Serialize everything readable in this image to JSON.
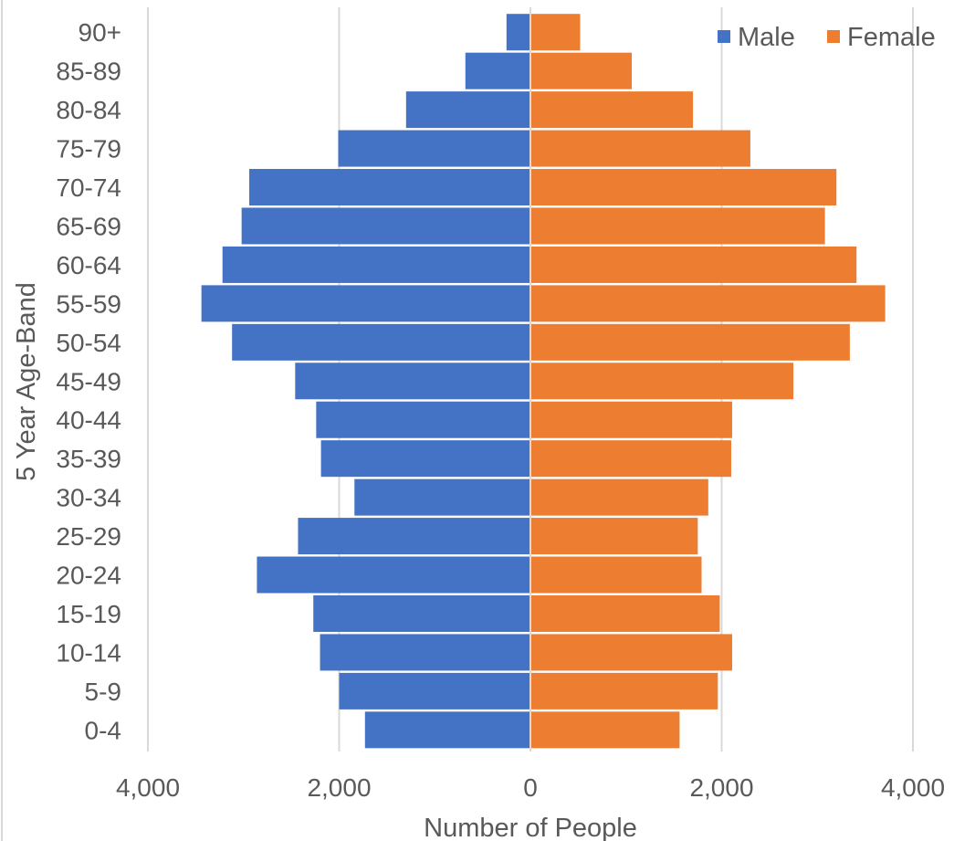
{
  "chart_data": {
    "type": "bar",
    "orientation": "horizontal",
    "style": "population-pyramid",
    "categories": [
      "0-4",
      "5-9",
      "10-14",
      "15-19",
      "20-24",
      "25-29",
      "30-34",
      "35-39",
      "40-44",
      "45-49",
      "50-54",
      "55-59",
      "60-64",
      "65-69",
      "70-74",
      "75-79",
      "80-84",
      "85-89",
      "90+"
    ],
    "series": [
      {
        "name": "Male",
        "color": "#4472c4",
        "direction": "left",
        "values": [
          1730,
          2000,
          2200,
          2270,
          2860,
          2430,
          1840,
          2190,
          2240,
          2460,
          3120,
          3440,
          3220,
          3020,
          2940,
          2010,
          1300,
          680,
          250
        ]
      },
      {
        "name": "Female",
        "color": "#ed7d31",
        "direction": "right",
        "values": [
          1560,
          1960,
          2110,
          1980,
          1790,
          1750,
          1860,
          2100,
          2110,
          2750,
          3340,
          3710,
          3410,
          3080,
          3200,
          2300,
          1700,
          1060,
          520
        ]
      }
    ],
    "xlabel": "Number of People",
    "ylabel": "5 Year Age-Band",
    "xlim": [
      -4000,
      4000
    ],
    "xticks": [
      -4000,
      -2000,
      0,
      2000,
      4000
    ],
    "xtick_labels": [
      "4,000",
      "2,000",
      "0",
      "2,000",
      "4,000"
    ],
    "grid": "vertical",
    "legend_position": "top-right",
    "colors": {
      "grid": "#d9d9d9",
      "text": "#595959",
      "background": "#ffffff"
    }
  }
}
